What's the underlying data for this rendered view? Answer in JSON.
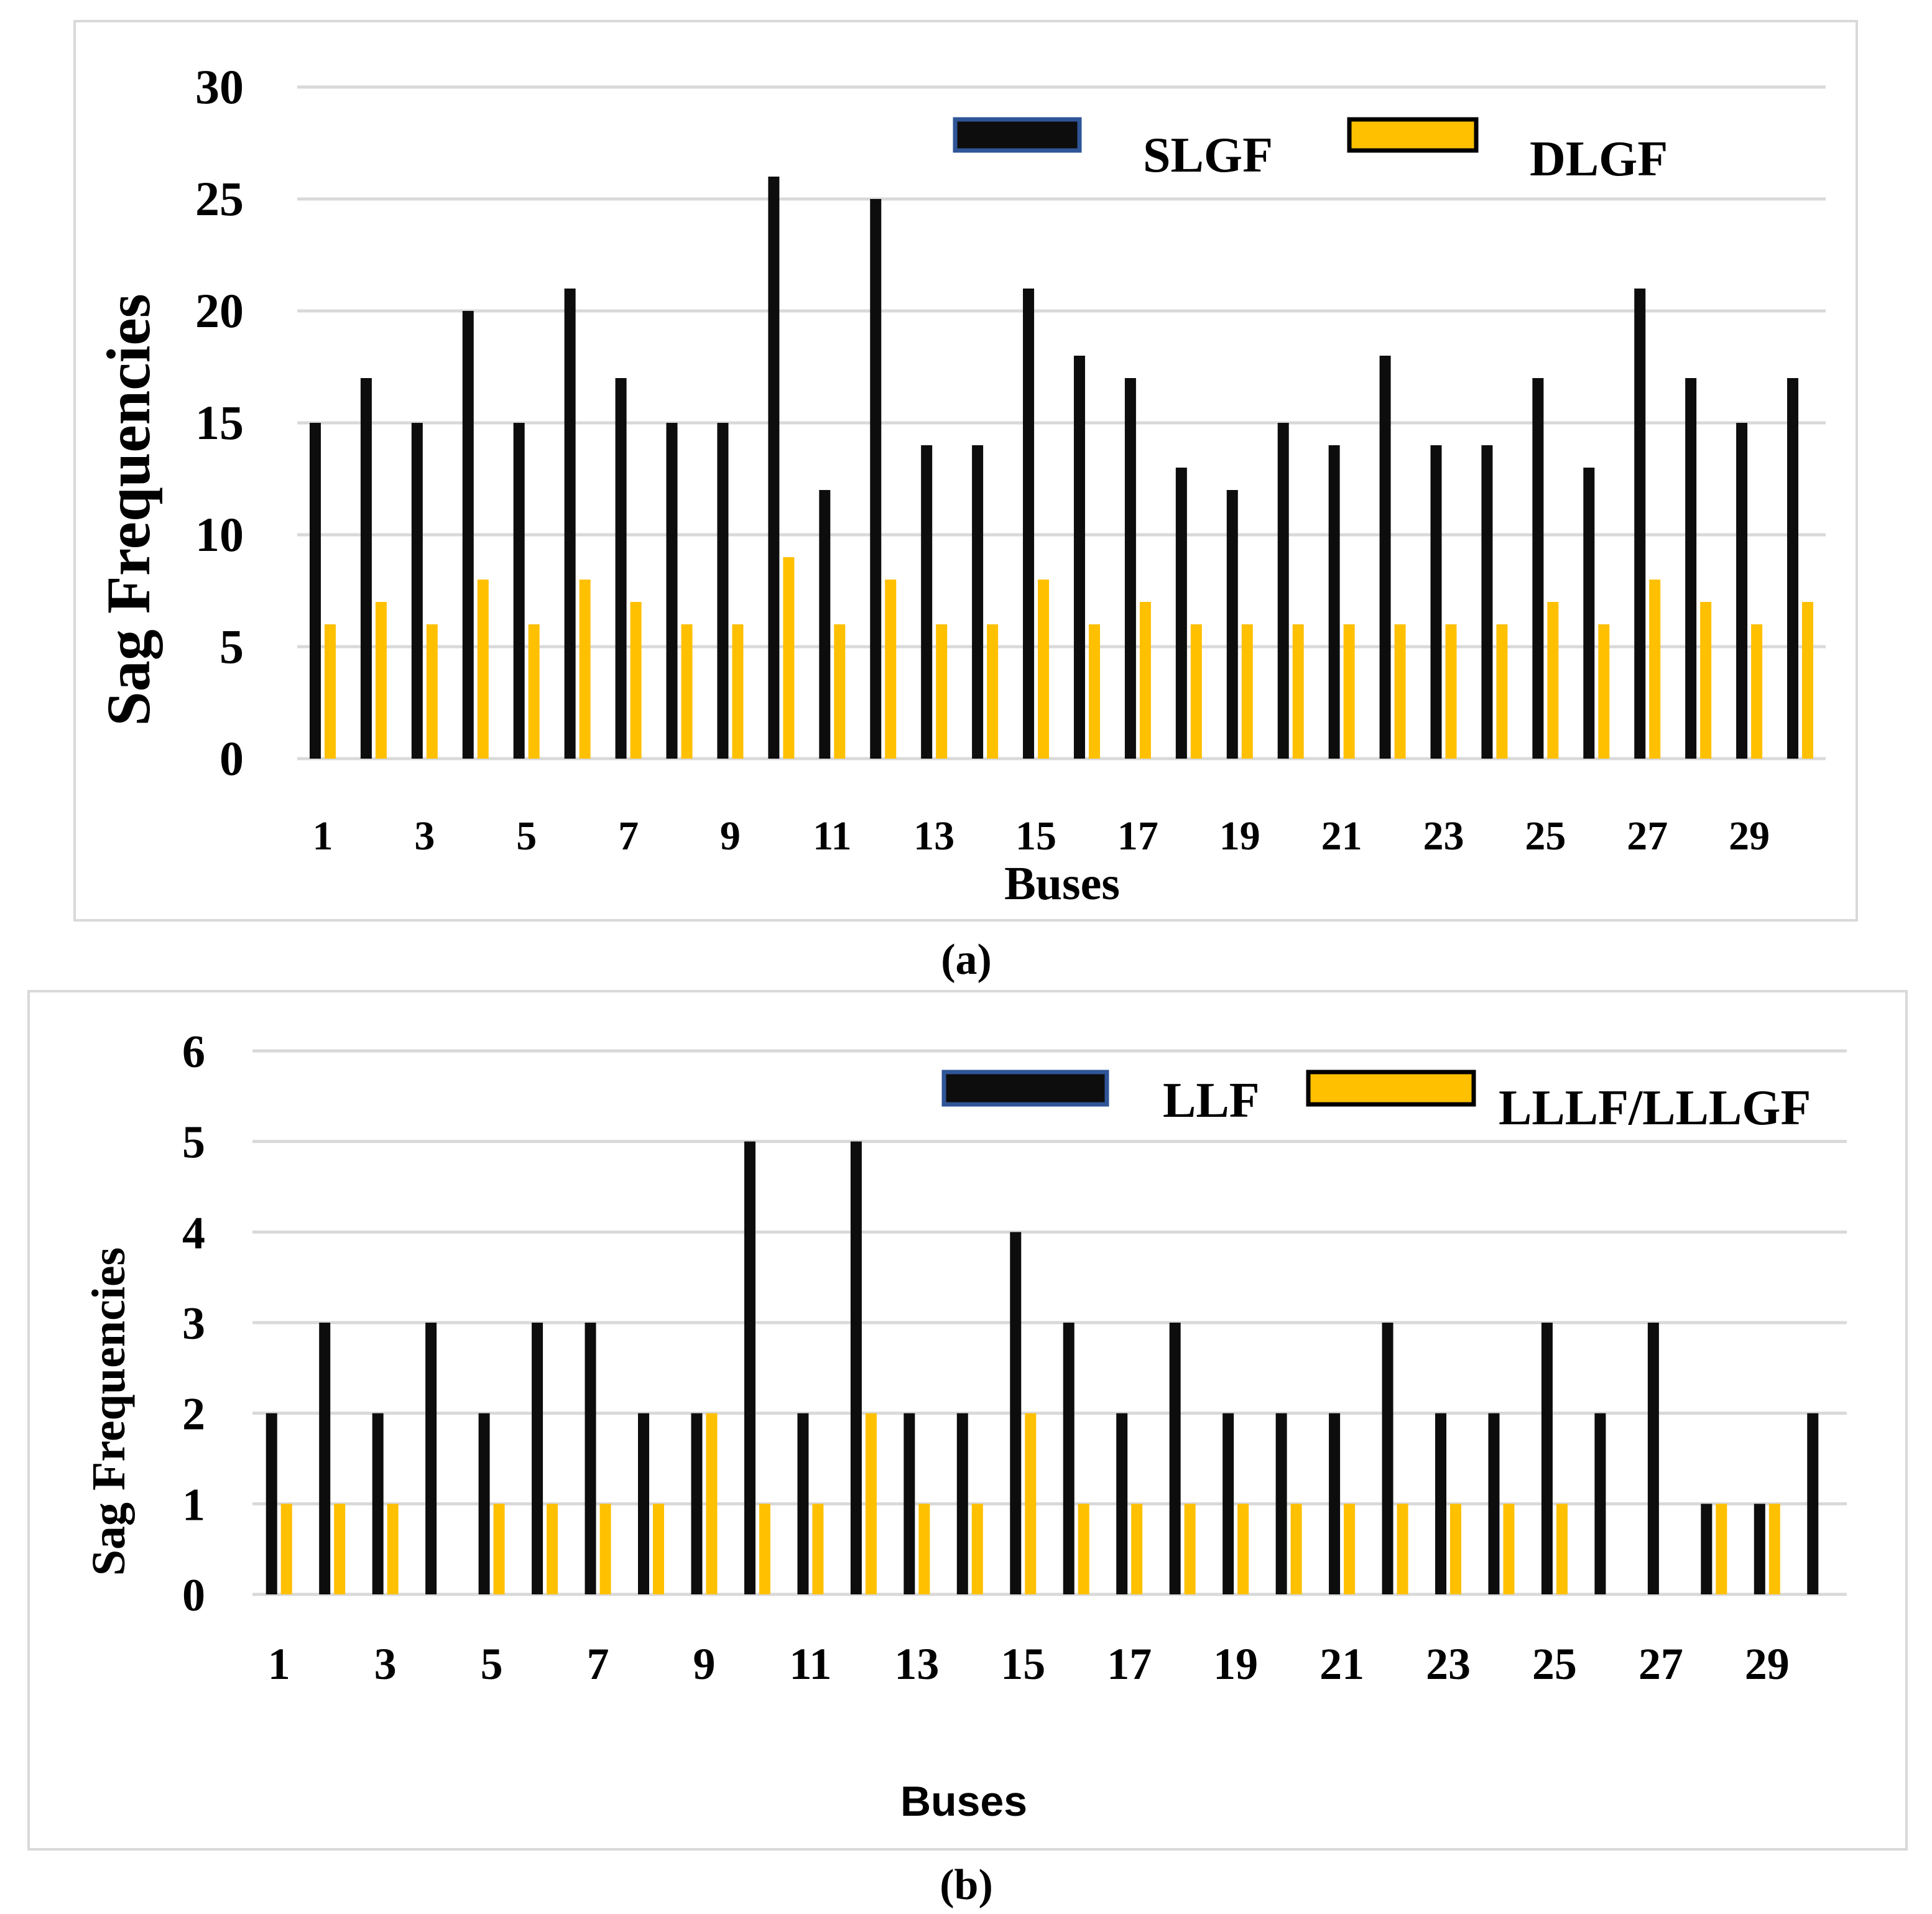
{
  "colors": {
    "series1": "#0d0d0d",
    "series2": "#ffc000",
    "legend1_border": "#2f5597",
    "legend2_border": "#000000",
    "grid": "#d9d9d9",
    "frame": "#d9d9d9"
  },
  "chart_data": [
    {
      "type": "bar",
      "caption": "(a)",
      "xlabel": "Buses",
      "ylabel": "Sag Frequencies",
      "ylim": [
        0,
        30
      ],
      "yticks": [
        "0",
        "5",
        "10",
        "15",
        "20",
        "25",
        "30"
      ],
      "categories": [
        "1",
        "2",
        "3",
        "4",
        "5",
        "6",
        "7",
        "8",
        "9",
        "10",
        "11",
        "12",
        "13",
        "14",
        "15",
        "16",
        "17",
        "18",
        "19",
        "20",
        "21",
        "22",
        "23",
        "24",
        "25",
        "26",
        "27",
        "28",
        "29",
        "30"
      ],
      "xtick_labels": [
        "1",
        "3",
        "5",
        "7",
        "9",
        "11",
        "13",
        "15",
        "17",
        "19",
        "21",
        "23",
        "25",
        "27",
        "29"
      ],
      "legend_position": "top-right",
      "series": [
        {
          "name": "SLGF",
          "values": [
            15,
            17,
            15,
            20,
            15,
            21,
            17,
            15,
            15,
            26,
            12,
            25,
            14,
            14,
            21,
            18,
            17,
            13,
            12,
            15,
            14,
            18,
            14,
            14,
            17,
            13,
            21,
            17,
            15,
            17
          ]
        },
        {
          "name": "DLGF",
          "values": [
            6,
            7,
            6,
            8,
            6,
            8,
            7,
            6,
            6,
            9,
            6,
            8,
            6,
            6,
            8,
            6,
            7,
            6,
            6,
            6,
            6,
            6,
            6,
            6,
            7,
            6,
            8,
            7,
            6,
            7
          ]
        }
      ]
    },
    {
      "type": "bar",
      "caption": "(b)",
      "xlabel": "Buses",
      "ylabel": "Sag Frequencies",
      "ylim": [
        0,
        6
      ],
      "yticks": [
        "0",
        "1",
        "2",
        "3",
        "4",
        "5",
        "6"
      ],
      "categories": [
        "1",
        "2",
        "3",
        "4",
        "5",
        "6",
        "7",
        "8",
        "9",
        "10",
        "11",
        "12",
        "13",
        "14",
        "15",
        "16",
        "17",
        "18",
        "19",
        "20",
        "21",
        "22",
        "23",
        "24",
        "25",
        "26",
        "27",
        "28",
        "29",
        "30"
      ],
      "xtick_labels": [
        "1",
        "3",
        "5",
        "7",
        "9",
        "11",
        "13",
        "15",
        "17",
        "19",
        "21",
        "23",
        "25",
        "27",
        "29"
      ],
      "legend_position": "top-right",
      "series": [
        {
          "name": "LLF",
          "values": [
            2,
            3,
            2,
            3,
            2,
            3,
            3,
            2,
            2,
            5,
            2,
            5,
            2,
            2,
            4,
            3,
            2,
            3,
            2,
            2,
            2,
            3,
            2,
            2,
            3,
            2,
            3,
            1,
            1,
            2
          ]
        },
        {
          "name": "LLLF/LLLGF",
          "values": [
            1,
            1,
            1,
            0,
            1,
            1,
            1,
            1,
            2,
            1,
            1,
            2,
            1,
            1,
            2,
            1,
            1,
            1,
            1,
            1,
            1,
            1,
            1,
            1,
            1,
            0,
            0,
            1,
            1,
            0
          ]
        }
      ]
    }
  ]
}
